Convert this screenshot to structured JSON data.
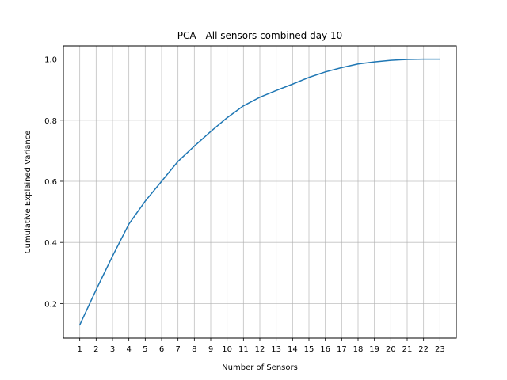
{
  "chart_data": {
    "type": "line",
    "title": "PCA - All sensors combined day 10",
    "xlabel": "Number of Sensors",
    "ylabel": "Cumulative Explained Variance",
    "x": [
      1,
      2,
      3,
      4,
      5,
      6,
      7,
      8,
      9,
      10,
      11,
      12,
      13,
      14,
      15,
      16,
      17,
      18,
      19,
      20,
      21,
      22,
      23
    ],
    "series": [
      {
        "name": "cumulative explained variance",
        "color": "#1f77b4",
        "values": [
          0.13,
          0.245,
          0.355,
          0.46,
          0.535,
          0.6,
          0.665,
          0.715,
          0.763,
          0.808,
          0.847,
          0.875,
          0.897,
          0.918,
          0.94,
          0.958,
          0.972,
          0.984,
          0.991,
          0.996,
          0.999,
          1.0,
          1.0
        ]
      }
    ],
    "xlim": [
      0.0,
      24.0
    ],
    "ylim": [
      0.087,
      1.043
    ],
    "xticks": [
      1,
      2,
      3,
      4,
      5,
      6,
      7,
      8,
      9,
      10,
      11,
      12,
      13,
      14,
      15,
      16,
      17,
      18,
      19,
      20,
      21,
      22,
      23
    ],
    "xtick_labels": [
      "1",
      "2",
      "3",
      "4",
      "5",
      "6",
      "7",
      "8",
      "9",
      "10",
      "11",
      "12",
      "13",
      "14",
      "15",
      "16",
      "17",
      "18",
      "19",
      "20",
      "21",
      "22",
      "23"
    ],
    "yticks": [
      0.2,
      0.4,
      0.6,
      0.8,
      1.0
    ],
    "ytick_labels": [
      "0.2",
      "0.4",
      "0.6",
      "0.8",
      "1.0"
    ],
    "grid": true
  }
}
